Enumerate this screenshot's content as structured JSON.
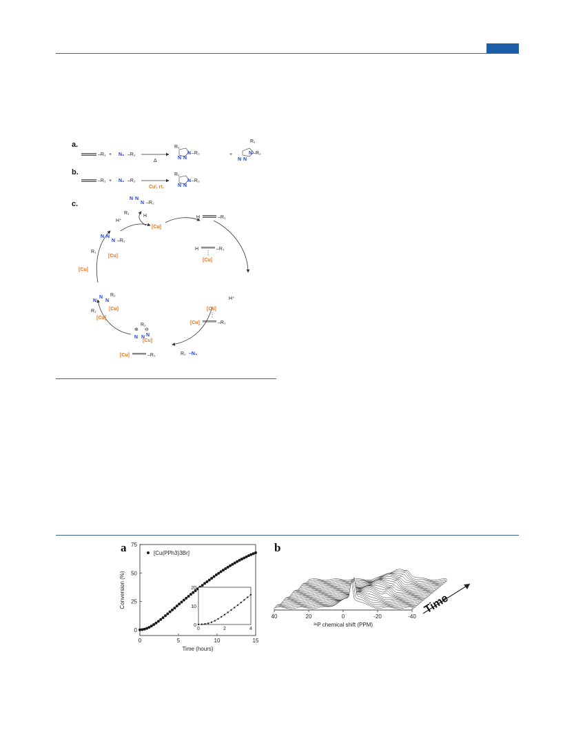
{
  "scheme": {
    "panel_a_label": "a.",
    "panel_b_label": "b.",
    "panel_c_label": "c.",
    "delta": "Δ",
    "plus": "+",
    "catalyst_b": "Cuᴵ, rt.",
    "cu": "[Cu]",
    "h_plus": "H⁺"
  },
  "figure": {
    "panel_a_label": "a",
    "panel_b_label": "b",
    "time_label": "Time",
    "nmr_xlabel": "³¹P chemical shift (PPM)",
    "nmr_ticks": [
      "40",
      "20",
      "0",
      "-20",
      "-40"
    ]
  },
  "chart_data": {
    "type": "scatter",
    "title": "",
    "xlabel": "Time (hours)",
    "ylabel": "Conversion (%)",
    "xlim": [
      0,
      15
    ],
    "ylim": [
      -5,
      75
    ],
    "xticks": [
      "0",
      "5",
      "10",
      "15"
    ],
    "yticks": [
      "0",
      "25",
      "50",
      "75"
    ],
    "legend": "top-left",
    "series": [
      {
        "name": "[Cu(PPh3)3Br]",
        "x": [
          0,
          0.3,
          0.6,
          0.9,
          1.2,
          1.5,
          1.8,
          2.1,
          2.4,
          2.7,
          3.0,
          3.3,
          3.6,
          3.9,
          4.2,
          4.5,
          4.8,
          5.1,
          5.4,
          5.7,
          6.0,
          6.3,
          6.6,
          6.9,
          7.2,
          7.5,
          7.8,
          8.1,
          8.4,
          8.7,
          9.0,
          9.3,
          9.6,
          9.9,
          10.2,
          10.5,
          10.8,
          11.1,
          11.4,
          11.7,
          12.0,
          12.3,
          12.6,
          12.9,
          13.2,
          13.5,
          13.8,
          14.1,
          14.4,
          14.7,
          15.0
        ],
        "values": [
          0,
          0.2,
          0.6,
          1.3,
          2.2,
          3.3,
          4.6,
          6.0,
          7.5,
          9.1,
          10.7,
          12.4,
          14.1,
          15.8,
          17.5,
          19.2,
          21.0,
          22.7,
          24.4,
          26.1,
          27.8,
          29.5,
          31.2,
          32.8,
          34.4,
          36.0,
          37.6,
          39.2,
          40.8,
          42.3,
          43.8,
          45.3,
          46.8,
          48.3,
          49.7,
          51.1,
          52.5,
          53.8,
          55.1,
          56.4,
          57.6,
          58.8,
          60.0,
          61.1,
          62.2,
          63.2,
          64.2,
          65.2,
          66.1,
          67.0,
          67.8
        ],
        "color": "#1a1a1a"
      }
    ],
    "inset": {
      "xlim": [
        0,
        4
      ],
      "ylim": [
        0,
        20
      ],
      "xticks": [
        "0",
        "2",
        "4"
      ],
      "yticks": [
        "0",
        "10",
        "20"
      ],
      "x": [
        0,
        0.25,
        0.5,
        0.75,
        1.0,
        1.25,
        1.5,
        1.75,
        2.0,
        2.25,
        2.5,
        2.75,
        3.0,
        3.25,
        3.5,
        3.75,
        4.0
      ],
      "values": [
        0,
        0.1,
        0.3,
        0.6,
        1.2,
        2.0,
        3.0,
        4.1,
        5.3,
        6.5,
        7.8,
        9.1,
        10.4,
        11.8,
        13.2,
        14.6,
        16.0
      ]
    }
  }
}
